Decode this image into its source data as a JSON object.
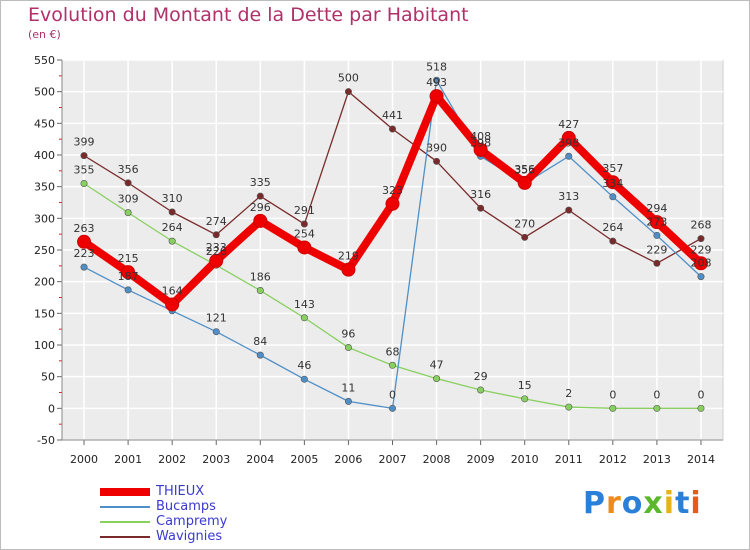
{
  "chart_data": {
    "type": "line",
    "title": "Evolution du Montant de la Dette par Habitant",
    "subtitle": "(en €)",
    "x": [
      "2000",
      "2001",
      "2002",
      "2003",
      "2004",
      "2005",
      "2006",
      "2007",
      "2008",
      "2009",
      "2010",
      "2011",
      "2012",
      "2013",
      "2014"
    ],
    "ylim": [
      -50,
      550
    ],
    "yticks": [
      -50,
      0,
      50,
      100,
      150,
      200,
      250,
      300,
      350,
      400,
      450,
      500,
      550
    ],
    "grid": true,
    "legend_position": "bottom-left",
    "series": [
      {
        "name": "THIEUX",
        "color": "#ee0000",
        "values": [
          263,
          215,
          164,
          233,
          296,
          254,
          219,
          323,
          493,
          408,
          356,
          427,
          357,
          294,
          229
        ],
        "labels": [
          "263",
          "215",
          "164",
          "233",
          "296",
          "254",
          "219",
          "323",
          "493",
          "408",
          "356",
          "427",
          "357",
          "294",
          "229"
        ]
      },
      {
        "name": "Bucamps",
        "color": "#4f8fc8",
        "values": [
          223,
          187,
          154,
          121,
          84,
          46,
          11,
          0,
          518,
          398,
          355,
          398,
          334,
          273,
          208
        ],
        "labels": [
          "223",
          "187",
          "",
          "121",
          "84",
          "46",
          "11",
          "0",
          "518",
          "398",
          "355",
          "398",
          "334",
          "273",
          "208"
        ]
      },
      {
        "name": "Campremy",
        "color": "#88d060",
        "values": [
          355,
          309,
          264,
          226,
          186,
          143,
          96,
          68,
          47,
          29,
          15,
          2,
          0,
          0,
          0
        ],
        "labels": [
          "355",
          "309",
          "264",
          "226",
          "186",
          "143",
          "96",
          "68",
          "47",
          "29",
          "15",
          "2",
          "0",
          "0",
          "0"
        ]
      },
      {
        "name": "Wavignies",
        "color": "#7a2a2a",
        "values": [
          399,
          356,
          310,
          274,
          335,
          291,
          500,
          441,
          390,
          316,
          270,
          313,
          264,
          229,
          268
        ],
        "labels": [
          "399",
          "356",
          "310",
          "274",
          "335",
          "291",
          "500",
          "441",
          "390",
          "316",
          "270",
          "313",
          "264",
          "229",
          "268"
        ]
      }
    ]
  },
  "logo": {
    "letters": [
      {
        "ch": "P",
        "color": "#2a7fd8"
      },
      {
        "ch": "r",
        "color": "#f08a1a"
      },
      {
        "ch": "o",
        "color": "#2a7fd8"
      },
      {
        "ch": "x",
        "color": "#5ab82a"
      },
      {
        "ch": "i",
        "color": "#e8b21a"
      },
      {
        "ch": "t",
        "color": "#2a7fd8"
      },
      {
        "ch": "i",
        "color": "#e85a1a"
      }
    ]
  }
}
